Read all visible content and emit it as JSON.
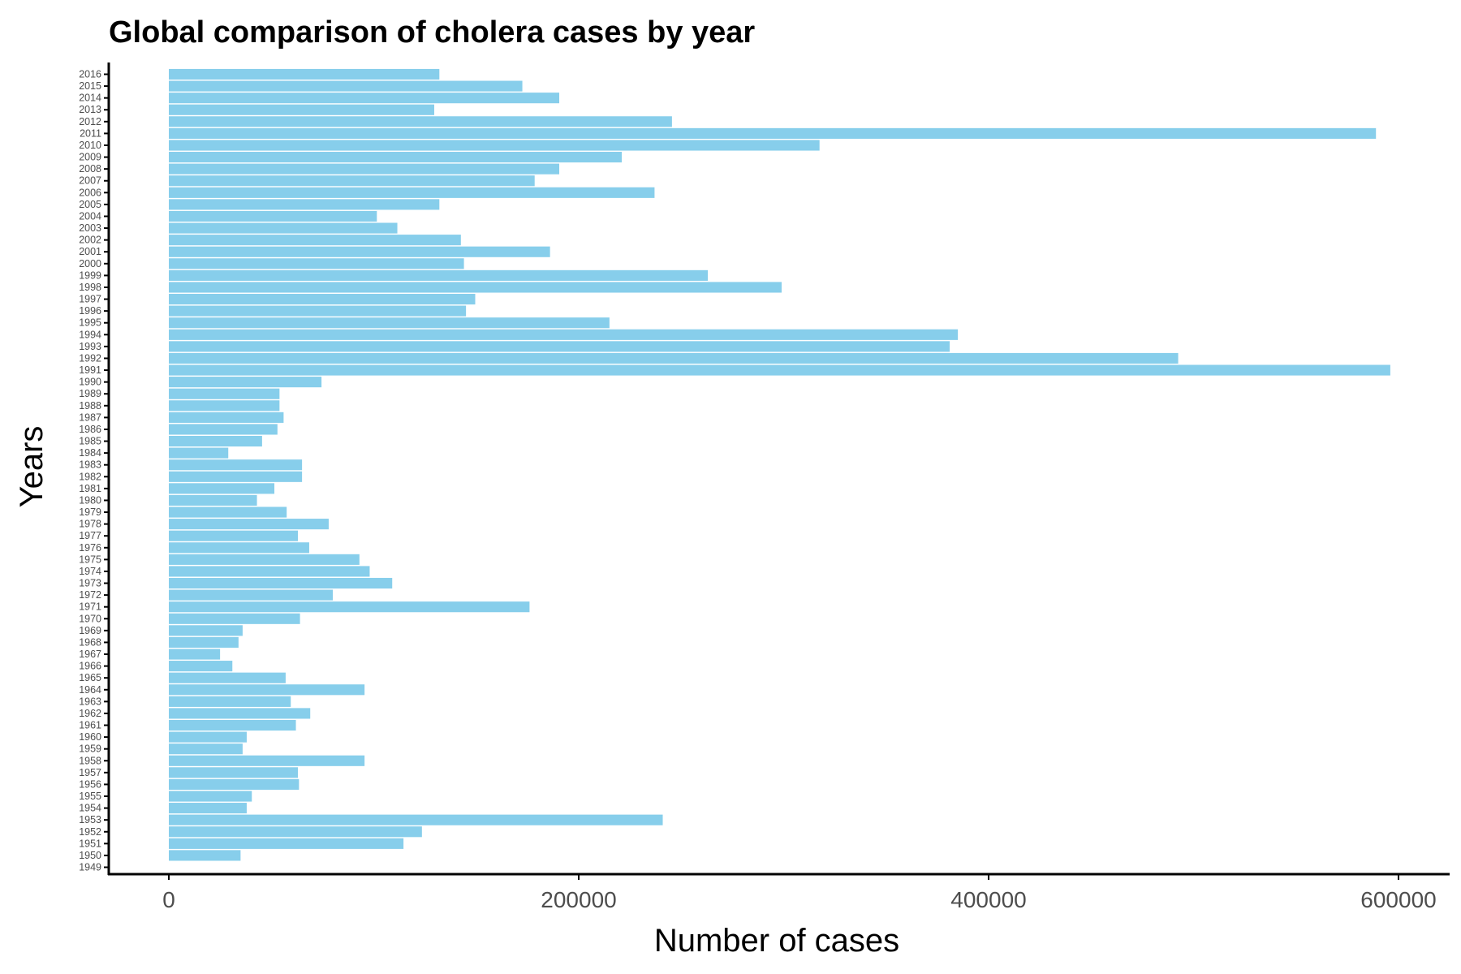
{
  "chart_data": {
    "type": "bar",
    "orientation": "horizontal",
    "title": "Global comparison of cholera cases by year",
    "xlabel": "Number of cases",
    "ylabel": "Years",
    "xlim": [
      -30000,
      625000
    ],
    "xticks": [
      0,
      200000,
      400000,
      600000
    ],
    "xtick_labels": [
      "0",
      "200000",
      "400000",
      "600000"
    ],
    "bar_color": "#87CEEB",
    "axis_color": "#000000",
    "grid": false,
    "legend": "none",
    "categories": [
      "1949",
      "1950",
      "1951",
      "1952",
      "1953",
      "1954",
      "1955",
      "1956",
      "1957",
      "1958",
      "1959",
      "1960",
      "1961",
      "1962",
      "1963",
      "1964",
      "1965",
      "1966",
      "1967",
      "1968",
      "1969",
      "1970",
      "1971",
      "1972",
      "1973",
      "1974",
      "1975",
      "1976",
      "1977",
      "1978",
      "1979",
      "1980",
      "1981",
      "1982",
      "1983",
      "1984",
      "1985",
      "1986",
      "1987",
      "1988",
      "1989",
      "1990",
      "1991",
      "1992",
      "1993",
      "1994",
      "1995",
      "1996",
      "1997",
      "1998",
      "1999",
      "2000",
      "2001",
      "2002",
      "2003",
      "2004",
      "2005",
      "2006",
      "2007",
      "2008",
      "2009",
      "2010",
      "2011",
      "2012",
      "2013",
      "2014",
      "2015",
      "2016"
    ],
    "values": [
      0,
      35000,
      114500,
      123500,
      241000,
      38000,
      40500,
      63500,
      63000,
      95500,
      36000,
      38000,
      62000,
      69000,
      59500,
      95500,
      57000,
      31000,
      25000,
      34000,
      36000,
      64000,
      176000,
      80000,
      109000,
      98000,
      93000,
      68500,
      63000,
      78000,
      57500,
      43000,
      51500,
      65000,
      65000,
      29000,
      45500,
      53000,
      56000,
      54000,
      54000,
      74500,
      596000,
      492500,
      381000,
      385000,
      215000,
      145000,
      149500,
      299000,
      263000,
      144000,
      186000,
      142500,
      111500,
      101500,
      132000,
      237000,
      178500,
      190500,
      221000,
      317500,
      589000,
      245500,
      129500,
      190500,
      172500,
      132000
    ]
  }
}
